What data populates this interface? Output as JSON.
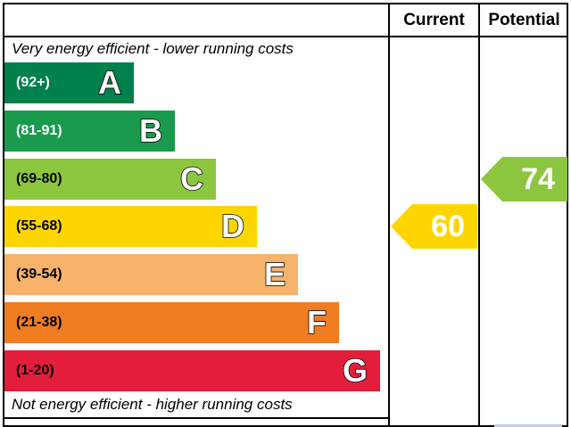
{
  "columns": {
    "current": "Current",
    "potential": "Potential"
  },
  "captions": {
    "top": "Very energy efficient - lower running costs",
    "bottom": "Not energy efficient - higher running costs"
  },
  "chart_data": {
    "type": "bar",
    "categories": [
      "A",
      "B",
      "C",
      "D",
      "E",
      "F",
      "G"
    ],
    "ranges": [
      "(92+)",
      "(81-91)",
      "(69-80)",
      "(55-68)",
      "(39-54)",
      "(21-38)",
      "(1-20)"
    ],
    "bands": [
      {
        "letter": "A",
        "range": "(92+)",
        "color": "#00804a",
        "text_color": "#ffffff"
      },
      {
        "letter": "B",
        "range": "(81-91)",
        "color": "#1a9a4c",
        "text_color": "#ffffff"
      },
      {
        "letter": "C",
        "range": "(69-80)",
        "color": "#8cc63f",
        "text_color": "#000000"
      },
      {
        "letter": "D",
        "range": "(55-68)",
        "color": "#ffd500",
        "text_color": "#000000"
      },
      {
        "letter": "E",
        "range": "(39-54)",
        "color": "#f7b26b",
        "text_color": "#000000"
      },
      {
        "letter": "F",
        "range": "(21-38)",
        "color": "#ef7d22",
        "text_color": "#000000"
      },
      {
        "letter": "G",
        "range": "(1-20)",
        "color": "#e31d3c",
        "text_color": "#000000"
      }
    ],
    "current": {
      "value": 60,
      "band": "D",
      "color": "#ffd500"
    },
    "potential": {
      "value": 74,
      "band": "C",
      "color": "#8cc63f"
    }
  }
}
